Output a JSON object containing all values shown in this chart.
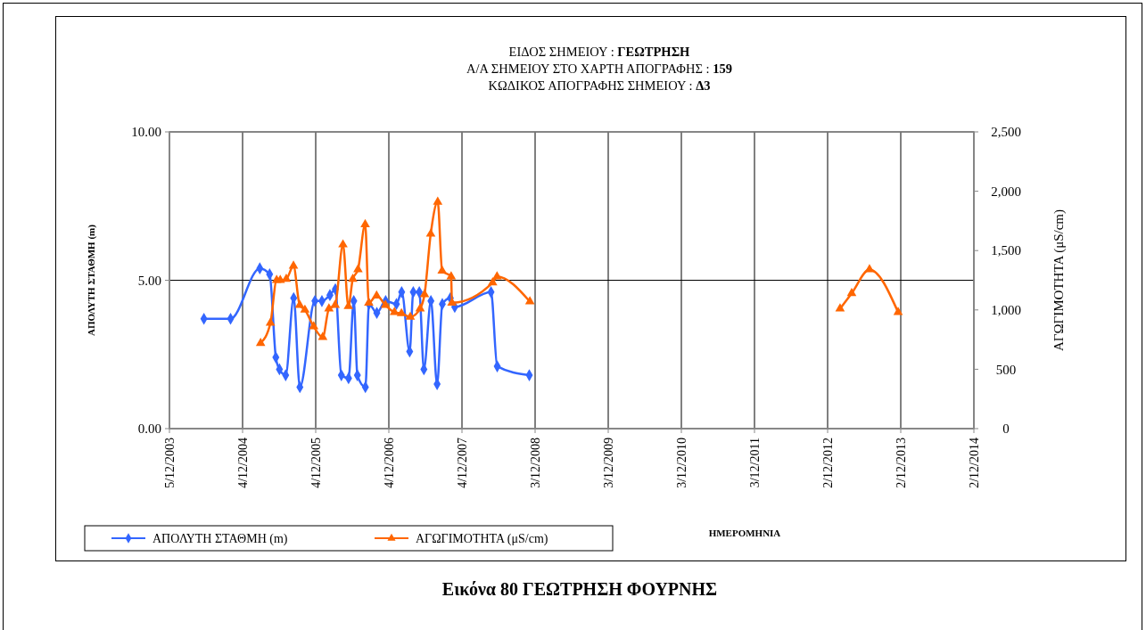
{
  "chart_data": {
    "type": "line",
    "title": "ΕΙΔΟΣ ΣΗΜΕΙΟΥ : ΓΕΩΤΡΗΣΗ\nΑ/Α ΣΗΜΕΙΟΥ ΣΤΟ ΧΑΡΤΗ ΑΠΟΓΡΑΦΗΣ : 159\nΚΩΔΙΚΟΣ ΑΠΟΓΡΑΦΗΣ ΣΗΜΕΙΟΥ : Δ3",
    "xlabel": "ΗΜΕΡΟΜΗΝΙΑ",
    "ylabel": "ΑΠΟΛΥΤΗ ΣΤΑΘΜΗ (m)",
    "y2label": "ΑΓΩΓΙΜΟΤΗΤΑ (μS/cm)",
    "annotations": [
      "Εικόνα 80 ΓΕΩΤΡΗΣΗ ΦΟΥΡΝΗΣ"
    ],
    "xlim": [
      "2003-12-05",
      "2014-12-02"
    ],
    "xticks": [
      {
        "value": "2003-12-05",
        "label": "5/12/2003"
      },
      {
        "value": "2004-12-04",
        "label": "4/12/2004"
      },
      {
        "value": "2005-12-04",
        "label": "4/12/2005"
      },
      {
        "value": "2006-12-04",
        "label": "4/12/2006"
      },
      {
        "value": "2007-12-04",
        "label": "4/12/2007"
      },
      {
        "value": "2008-12-03",
        "label": "3/12/2008"
      },
      {
        "value": "2009-12-03",
        "label": "3/12/2009"
      },
      {
        "value": "2010-12-03",
        "label": "3/12/2010"
      },
      {
        "value": "2011-12-03",
        "label": "3/12/2011"
      },
      {
        "value": "2012-12-02",
        "label": "2/12/2012"
      },
      {
        "value": "2013-12-02",
        "label": "2/12/2013"
      },
      {
        "value": "2014-12-02",
        "label": "2/12/2014"
      }
    ],
    "ylim": [
      0,
      10
    ],
    "yticks": [
      {
        "value": 0,
        "label": "0.00"
      },
      {
        "value": 5,
        "label": "5.00"
      },
      {
        "value": 10,
        "label": "10.00"
      }
    ],
    "y2lim": [
      0,
      2500
    ],
    "y2ticks": [
      0,
      500,
      {
        "value": 1000,
        "label": "1,000"
      },
      {
        "value": 1500,
        "label": "1,500"
      },
      {
        "value": 2000,
        "label": "2,000"
      },
      {
        "value": 2500,
        "label": "2,500"
      }
    ],
    "grid": true,
    "legend": "bottom left",
    "line_style": "solid",
    "series": [
      {
        "name": "ΑΠΟΛΥΤΗ ΣΤΑΘΜΗ (m)",
        "color": "#3366ff",
        "marker": "diamond",
        "x": [
          "2004-05-25",
          "2004-10-05",
          "2005-02-28",
          "2005-04-18",
          "2005-05-19",
          "2005-06-06",
          "2005-07-07",
          "2005-08-16",
          "2005-09-16",
          "2005-11-30",
          "2006-01-04",
          "2006-02-13",
          "2006-03-12",
          "2006-04-11",
          "2006-05-17",
          "2006-06-12",
          "2006-06-30",
          "2006-08-09",
          "2006-08-27",
          "2006-10-05",
          "2006-11-18",
          "2007-01-11",
          "2007-02-06",
          "2007-03-18",
          "2007-04-05",
          "2007-05-05",
          "2007-05-28",
          "2007-07-02",
          "2007-08-02",
          "2007-08-28",
          "2007-10-07",
          "2007-10-29",
          "2008-04-27",
          "2008-05-28",
          "2008-11-04"
        ],
        "values": [
          3.7,
          3.7,
          5.4,
          5.2,
          2.4,
          2.0,
          1.8,
          4.4,
          1.4,
          4.3,
          4.3,
          4.5,
          4.7,
          1.8,
          1.7,
          4.3,
          1.8,
          1.4,
          4.2,
          3.9,
          4.3,
          4.2,
          4.6,
          2.6,
          4.6,
          4.6,
          2.0,
          4.3,
          1.5,
          4.2,
          4.4,
          4.1,
          4.6,
          2.1,
          1.8
        ]
      },
      {
        "name": "ΑΓΩΓΙΜΟΤΗΤΑ (μS/cm)",
        "color": "#ff6600",
        "marker": "triangle",
        "axis": "y2",
        "x": [
          "2005-03-04",
          "2005-04-22",
          "2005-05-23",
          "2005-06-10",
          "2005-07-10",
          "2005-08-15",
          "2005-09-15",
          "2005-10-11",
          "2005-11-24",
          "2006-01-08",
          "2006-02-08",
          "2006-03-11",
          "2006-04-19",
          "2006-05-16",
          "2006-06-07",
          "2006-07-03",
          "2006-08-08",
          "2006-08-26",
          "2006-10-04",
          "2006-11-17",
          "2007-01-01",
          "2007-02-05",
          "2007-03-21",
          "2007-05-09",
          "2007-05-31",
          "2007-07-01",
          "2007-08-05",
          "2007-08-27",
          "2007-10-11",
          "2007-10-15",
          "2008-05-05",
          "2008-05-27",
          "2008-11-07",
          "2010-12-03",
          "2013-02-02",
          "2013-04-01",
          "2013-06-29",
          "2013-11-19"
        ],
        "values": [
          720,
          890,
          1250,
          1250,
          1260,
          1370,
          1040,
          1000,
          860,
          770,
          1010,
          1040,
          1550,
          1030,
          1260,
          1340,
          1720,
          1060,
          1120,
          1040,
          980,
          970,
          940,
          1010,
          1130,
          1640,
          1910,
          1330,
          1280,
          1060,
          1230,
          1280,
          1070,
          null,
          1010,
          1140,
          1340,
          980
        ]
      }
    ]
  }
}
